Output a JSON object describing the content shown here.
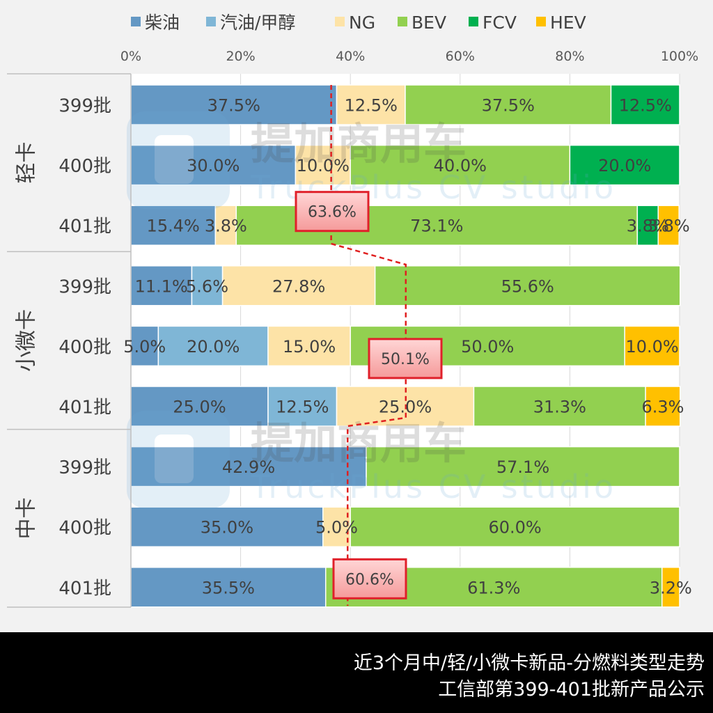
{
  "colors": {
    "柴油": "#6498c4",
    "汽油/甲醇": "#7fb6d6",
    "NG": "#fde3a7",
    "BEV": "#92d050",
    "FCV": "#00b050",
    "HEV": "#ffc000",
    "trend_line": "#e02020",
    "callout_border": "#e0202a"
  },
  "chart_data": {
    "type": "bar",
    "orientation": "horizontal",
    "stacked": "percent",
    "xlim": [
      0,
      100
    ],
    "x_ticks": [
      "0%",
      "20%",
      "40%",
      "60%",
      "80%",
      "100%"
    ],
    "legend": {
      "position": "top",
      "entries": [
        "柴油",
        "汽油/甲醇",
        "NG",
        "BEV",
        "FCV",
        "HEV"
      ]
    },
    "groups": [
      {
        "label": "轻卡",
        "rows": [
          {
            "label": "399批",
            "values": {
              "柴油": 37.5,
              "汽油/甲醇": 0,
              "NG": 12.5,
              "BEV": 37.5,
              "FCV": 12.5,
              "HEV": 0
            }
          },
          {
            "label": "400批",
            "values": {
              "柴油": 30.0,
              "汽油/甲醇": 0,
              "NG": 10.0,
              "BEV": 40.0,
              "FCV": 20.0,
              "HEV": 0
            }
          },
          {
            "label": "401批",
            "values": {
              "柴油": 15.4,
              "汽油/甲醇": 0,
              "NG": 3.8,
              "BEV": 73.1,
              "FCV": 3.8,
              "HEV": 3.8
            }
          }
        ],
        "callout": {
          "value": "63.6%",
          "row": 2,
          "data_x": 36.5
        }
      },
      {
        "label": "小微卡",
        "rows": [
          {
            "label": "399批",
            "values": {
              "柴油": 11.1,
              "汽油/甲醇": 5.6,
              "NG": 27.8,
              "BEV": 55.6,
              "FCV": 0,
              "HEV": 0
            }
          },
          {
            "label": "400批",
            "values": {
              "柴油": 5.0,
              "汽油/甲醇": 20.0,
              "NG": 15.0,
              "BEV": 50.0,
              "FCV": 0,
              "HEV": 10.0
            }
          },
          {
            "label": "401批",
            "values": {
              "柴油": 25.0,
              "汽油/甲醇": 12.5,
              "NG": 25.0,
              "BEV": 31.3,
              "FCV": 0,
              "HEV": 6.3
            }
          }
        ],
        "callout": {
          "value": "50.1%",
          "row": 1,
          "data_x": 50.1
        }
      },
      {
        "label": "中卡",
        "rows": [
          {
            "label": "399批",
            "values": {
              "柴油": 42.9,
              "汽油/甲醇": 0,
              "NG": 0,
              "BEV": 57.1,
              "FCV": 0,
              "HEV": 0
            }
          },
          {
            "label": "400批",
            "values": {
              "柴油": 35.0,
              "汽油/甲醇": 0,
              "NG": 5.0,
              "BEV": 60.0,
              "FCV": 0,
              "HEV": 0
            }
          },
          {
            "label": "401批",
            "values": {
              "柴油": 35.5,
              "汽油/甲醇": 0,
              "NG": 0,
              "BEV": 61.3,
              "FCV": 0,
              "HEV": 3.2
            }
          }
        ],
        "callout": {
          "value": "60.6%",
          "row": 2,
          "data_x": 39.5
        }
      }
    ],
    "trend_line_x": [
      36.5,
      36.5,
      50.1,
      50.1,
      39.5,
      39.5
    ]
  },
  "watermark": {
    "cn": "提加商用车",
    "en": "TruckPlus CV studio"
  },
  "footer": {
    "line1": "近3个月中/轻/小微卡新品-分燃料类型走势",
    "line2": "工信部第399-401批新产品公示"
  }
}
